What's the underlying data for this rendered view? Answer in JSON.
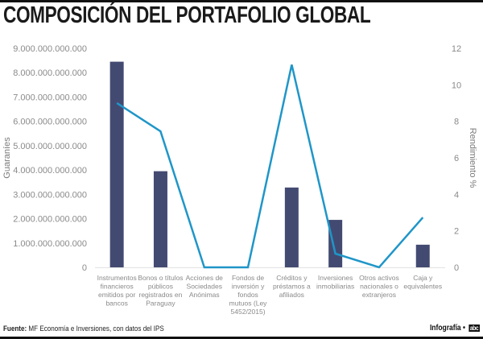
{
  "header": {
    "title": "COMPOSICIÓN DEL PORTAFOLIO GLOBAL"
  },
  "footer": {
    "source_label": "Fuente:",
    "source_text": "MF Economía e Inversiones, con datos del IPS",
    "credit_label": "Infografía •",
    "credit_brand": "abc"
  },
  "colors": {
    "bar": "#434a72",
    "line": "#1f96c8",
    "axis_text": "#8a8a8a"
  },
  "chart_data": {
    "type": "bar+line",
    "title": "COMPOSICIÓN DEL PORTAFOLIO GLOBAL",
    "ylabel": "Guaraníes",
    "y2label": "Rendimiento %",
    "ylim": [
      0,
      9000000000000
    ],
    "y2lim": [
      0,
      12
    ],
    "yticks": [
      "0",
      "1.000.000.000.000",
      "2.000.000.000.000",
      "3.000.000.000.000",
      "4.000.000.000.000",
      "5.000.000.000.000",
      "6.000.000.000.000",
      "7.000.000.000.000",
      "8.000.000.000.000",
      "9.000.000.000.000"
    ],
    "y2ticks": [
      "0",
      "2",
      "4",
      "6",
      "8",
      "10",
      "12"
    ],
    "categories": [
      [
        "Instrumentos",
        "financieros",
        "emitidos por",
        "bancos"
      ],
      [
        "Bonos o títulos",
        "públicos",
        "registrados en",
        "Paraguay"
      ],
      [
        "Acciones de",
        "Sociedades",
        "Anónimas"
      ],
      [
        "Fondos de",
        "inversión y",
        "fondos",
        "mutuos (Ley",
        "5452/2015)"
      ],
      [
        "Créditos y",
        "préstamos a",
        "afiliados"
      ],
      [
        "Inversiones",
        "inmobiliarias"
      ],
      [
        "Otros activos",
        "nacionales o",
        "extranjeros"
      ],
      [
        "Caja y",
        "equivalentes"
      ]
    ],
    "series": [
      {
        "name": "Guaraníes",
        "type": "bar",
        "axis": "left",
        "values": [
          8450000000000,
          3950000000000,
          0,
          0,
          3280000000000,
          1950000000000,
          0,
          930000000000
        ]
      },
      {
        "name": "Rendimiento %",
        "type": "line",
        "axis": "right",
        "values": [
          9.0,
          7.45,
          0,
          0,
          11.1,
          0.75,
          0,
          2.73
        ]
      }
    ],
    "grid": false,
    "legend": "none"
  }
}
